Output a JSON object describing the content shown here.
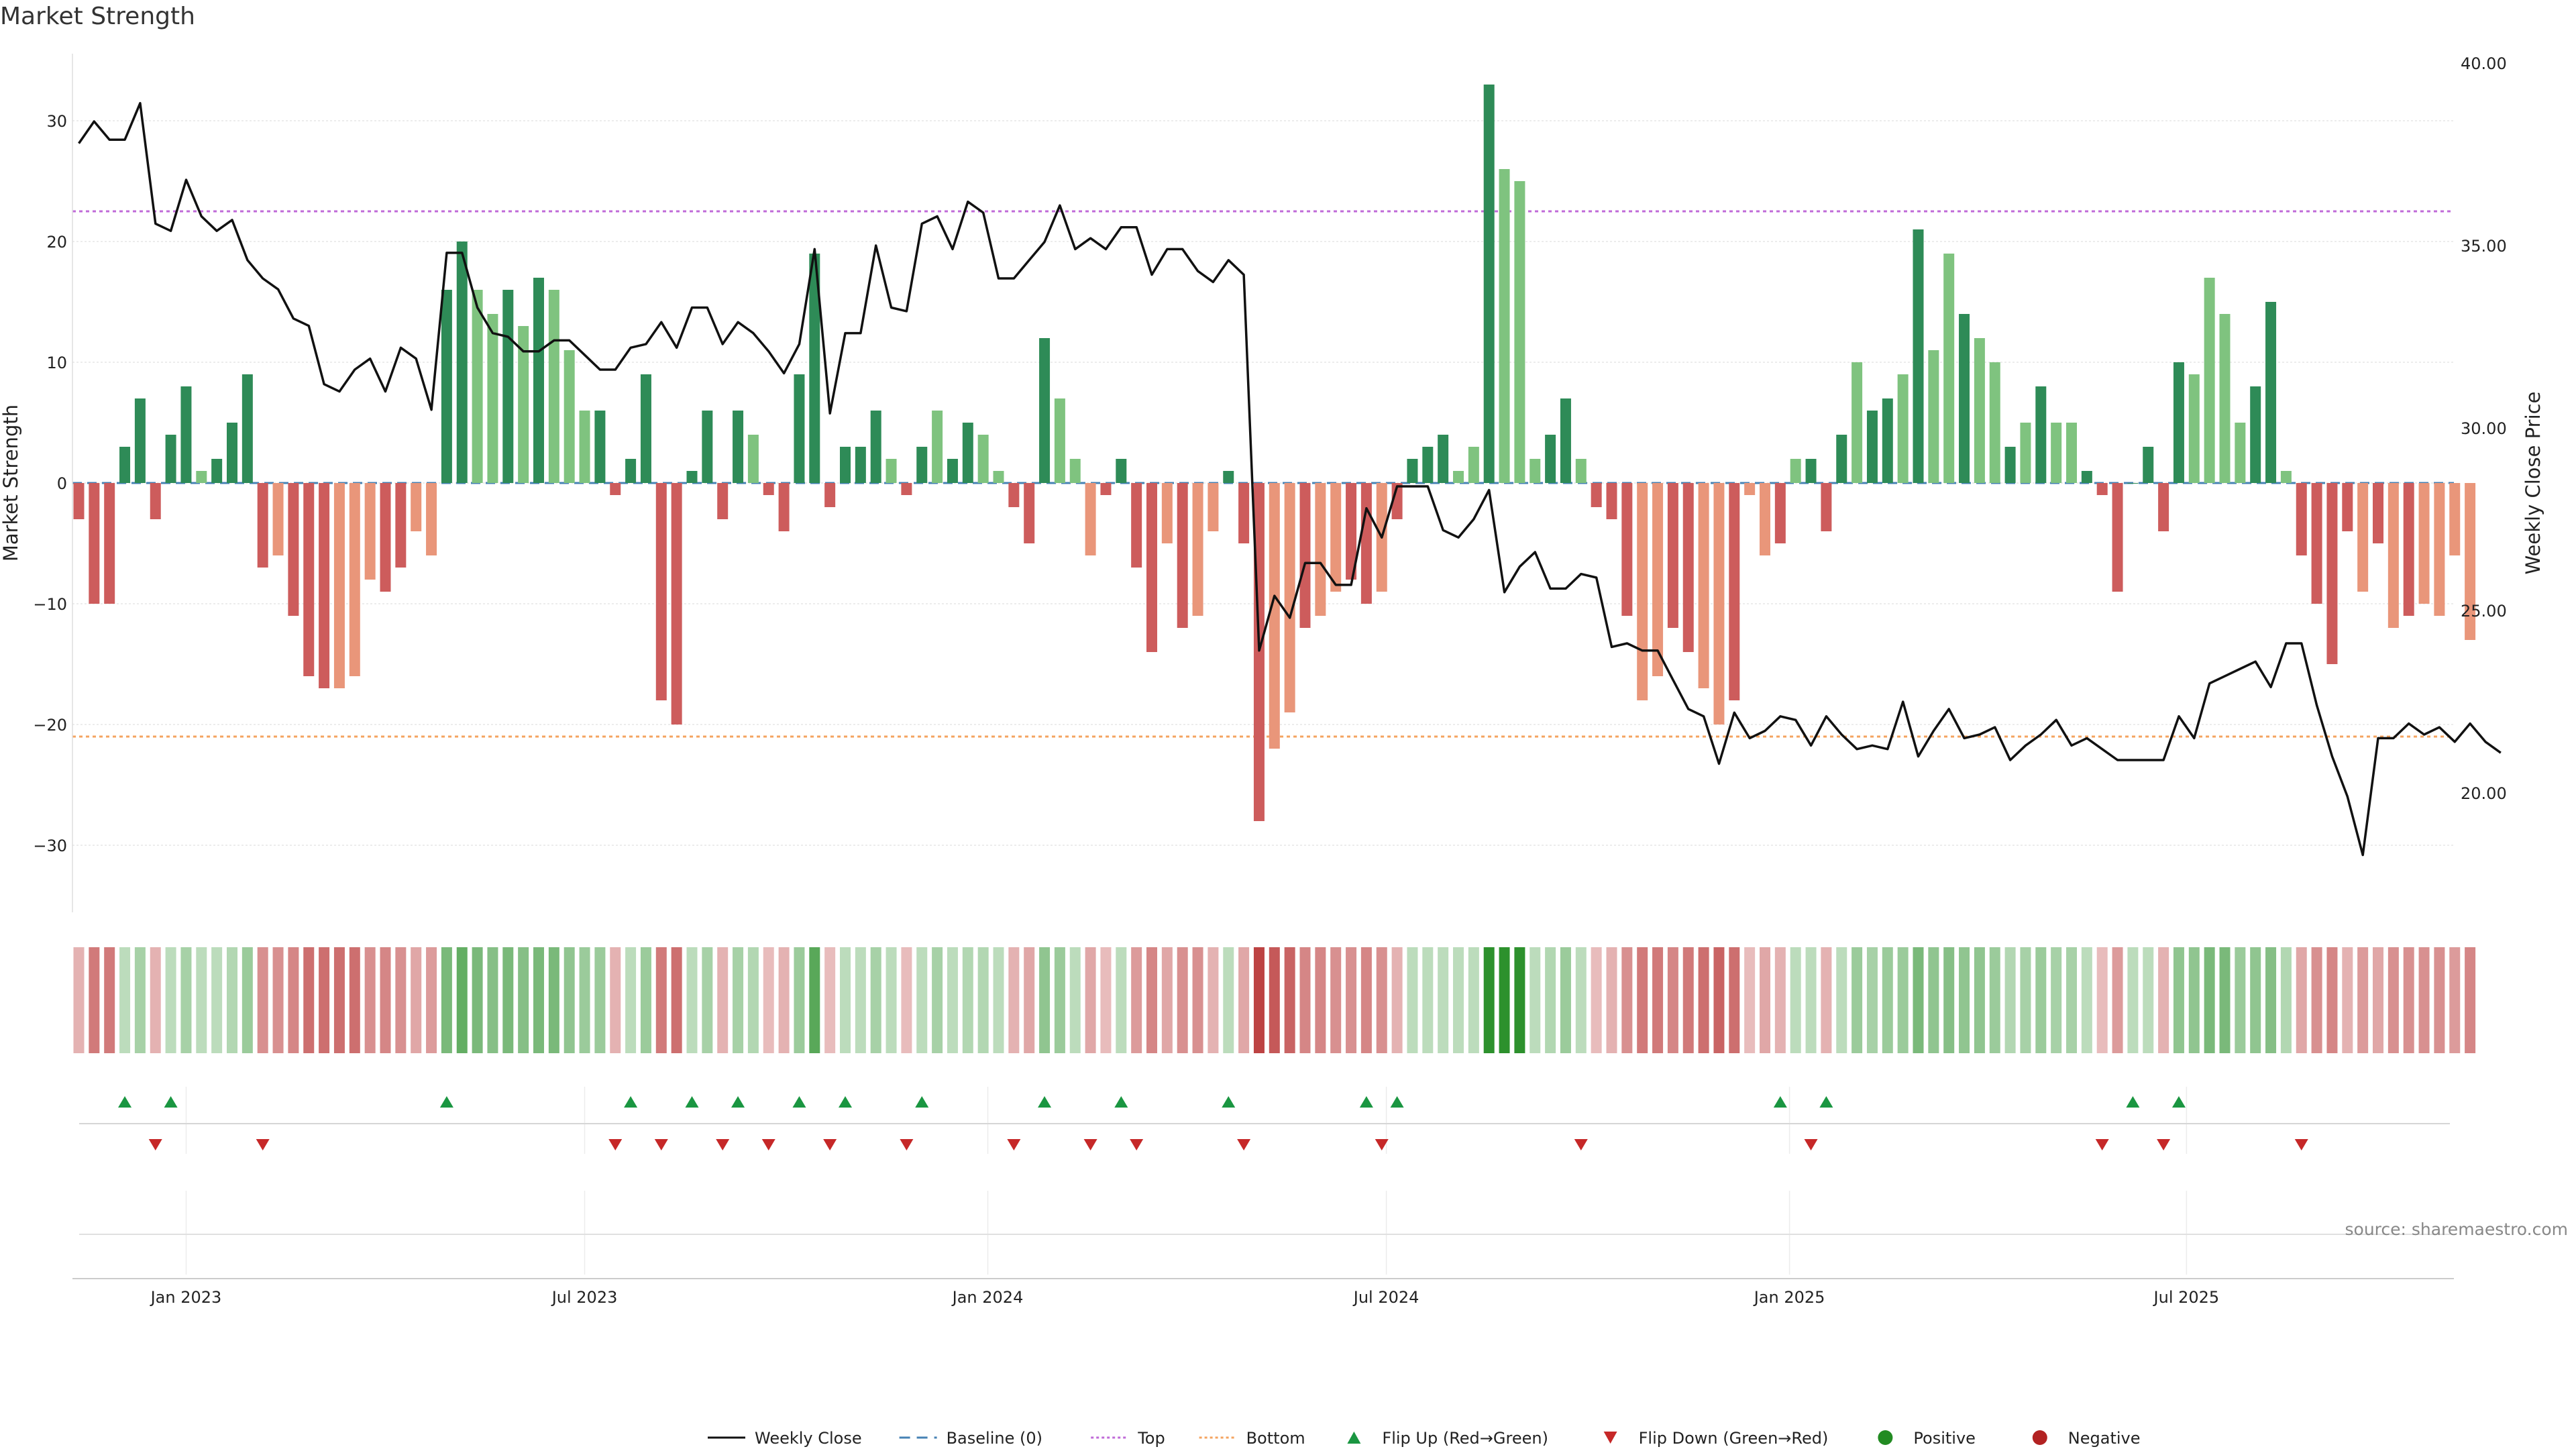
{
  "title": "Market Strength",
  "source": "source: sharemaestro.com",
  "colors": {
    "pos_strong": "#2e8b57",
    "pos_light": "#7fc37f",
    "neg_strong": "#cd5c5c",
    "neg_light": "#e9967a",
    "close": "#111111",
    "baseline": "#4682b4",
    "top": "#c06bd8",
    "bottom": "#f4a460",
    "flip_up": "#1a9641",
    "flip_down": "#c62828",
    "positive": "#228b22",
    "negative": "#b22222"
  },
  "icons": {
    "flip_up": "triangle-up-icon",
    "flip_down": "triangle-down-icon",
    "positive": "circle-icon",
    "negative": "circle-icon"
  },
  "legend": {
    "close": "Weekly Close",
    "baseline": "Baseline (0)",
    "top": "Top",
    "bottom": "Bottom",
    "flip_up": "Flip Up (Red→Green)",
    "flip_down": "Flip Down (Green→Red)",
    "positive": "Positive",
    "negative": "Negative"
  },
  "chart_data": {
    "type": "bar",
    "title": "Market Strength",
    "ylabel": "Market Strength",
    "y2label": "Weekly Close Price",
    "ylim": [
      -35,
      36
    ],
    "y2lim": [
      16.5,
      40.5
    ],
    "yticks": [
      -30,
      -20,
      -10,
      0,
      10,
      20,
      30
    ],
    "y2ticks": [
      "20.00",
      "25.00",
      "30.00",
      "35.00",
      "40.00"
    ],
    "xticks": [
      {
        "label": "Jan 2023",
        "index": 7
      },
      {
        "label": "Jul 2023",
        "index": 33
      },
      {
        "label": "Jan 2024",
        "index": 59.3
      },
      {
        "label": "Jul 2024",
        "index": 85.3
      },
      {
        "label": "Jan 2025",
        "index": 111.6
      },
      {
        "label": "Jul 2025",
        "index": 137.5
      }
    ],
    "top_line": 22.5,
    "bottom_line": -21,
    "baseline": 0,
    "strength": [
      -3,
      -10,
      -10,
      3,
      7,
      -3,
      4,
      8,
      1,
      2,
      5,
      9,
      -7,
      -6,
      -11,
      -16,
      -17,
      -17,
      -16,
      -8,
      -9,
      -7,
      -4,
      -6,
      16,
      20,
      16,
      14,
      16,
      13,
      17,
      16,
      11,
      6,
      6,
      -1,
      2,
      9,
      -18,
      -20,
      1,
      6,
      -3,
      6,
      4,
      -1,
      -4,
      9,
      19,
      -2,
      3,
      3,
      6,
      2,
      -1,
      3,
      6,
      2,
      5,
      4,
      1,
      -2,
      -5,
      12,
      7,
      2,
      -6,
      -1,
      2,
      -7,
      -14,
      -5,
      -12,
      -11,
      -4,
      1,
      -5,
      -28,
      -22,
      -19,
      -12,
      -11,
      -9,
      -8,
      -10,
      -9,
      -3,
      2,
      3,
      4,
      1,
      3,
      33,
      26,
      25,
      2,
      4,
      7,
      2,
      -2,
      -3,
      -11,
      -18,
      -16,
      -12,
      -14,
      -17,
      -20,
      -18,
      -1,
      -6,
      -5,
      2,
      2,
      -4,
      4,
      10,
      6,
      7,
      9,
      21,
      11,
      19,
      14,
      12,
      10,
      3,
      5,
      8,
      5,
      5,
      1,
      -1,
      -9,
      0,
      3,
      -4,
      10,
      9,
      17,
      14,
      5,
      8,
      15,
      1,
      -6,
      -10,
      -15,
      -4,
      -9,
      -5,
      -12,
      -11,
      -10,
      -11,
      -6,
      -13
    ],
    "strength_shade": [
      "s",
      "s",
      "s",
      "s",
      "s",
      "s",
      "s",
      "s",
      "l",
      "s",
      "s",
      "s",
      "s",
      "l",
      "s",
      "s",
      "s",
      "l",
      "l",
      "l",
      "s",
      "s",
      "l",
      "l",
      "s",
      "s",
      "l",
      "l",
      "s",
      "l",
      "s",
      "l",
      "l",
      "l",
      "s",
      "s",
      "s",
      "s",
      "s",
      "s",
      "s",
      "s",
      "s",
      "s",
      "l",
      "s",
      "s",
      "s",
      "s",
      "s",
      "s",
      "s",
      "s",
      "l",
      "s",
      "s",
      "l",
      "s",
      "s",
      "l",
      "l",
      "s",
      "s",
      "s",
      "l",
      "l",
      "l",
      "s",
      "s",
      "s",
      "s",
      "l",
      "s",
      "l",
      "l",
      "s",
      "s",
      "s",
      "l",
      "l",
      "s",
      "l",
      "l",
      "s",
      "s",
      "l",
      "s",
      "s",
      "s",
      "s",
      "l",
      "l",
      "s",
      "l",
      "l",
      "l",
      "s",
      "s",
      "l",
      "s",
      "s",
      "s",
      "l",
      "l",
      "s",
      "s",
      "l",
      "l",
      "s",
      "l",
      "l",
      "s",
      "l",
      "s",
      "s",
      "s",
      "l",
      "s",
      "s",
      "l",
      "s",
      "l",
      "l",
      "s",
      "l",
      "l",
      "s",
      "l",
      "s",
      "l",
      "l",
      "s",
      "s",
      "s",
      "s",
      "s",
      "s",
      "s",
      "l",
      "l",
      "l",
      "l",
      "s",
      "s",
      "l",
      "s",
      "s",
      "s",
      "s",
      "l",
      "s",
      "l",
      "s",
      "l",
      "l",
      "l",
      "l",
      "s"
    ],
    "close": [
      37.8,
      38.4,
      37.9,
      37.9,
      38.9,
      35.6,
      35.4,
      36.8,
      35.8,
      35.4,
      35.7,
      34.6,
      34.1,
      33.8,
      33.0,
      32.8,
      31.2,
      31.0,
      31.6,
      31.9,
      31.0,
      32.2,
      31.9,
      30.5,
      34.8,
      34.8,
      33.3,
      32.6,
      32.5,
      32.1,
      32.1,
      32.4,
      32.4,
      32.0,
      31.6,
      31.6,
      32.2,
      32.3,
      32.9,
      32.2,
      33.3,
      33.3,
      32.3,
      32.9,
      32.6,
      32.1,
      31.5,
      32.3,
      34.9,
      30.4,
      32.6,
      32.6,
      35.0,
      33.3,
      33.2,
      35.6,
      35.8,
      34.9,
      36.2,
      35.9,
      34.1,
      34.1,
      34.6,
      35.1,
      36.1,
      34.9,
      35.2,
      34.9,
      35.5,
      35.5,
      34.2,
      34.9,
      34.9,
      34.3,
      34.0,
      34.6,
      34.2,
      23.9,
      25.4,
      24.8,
      26.3,
      26.3,
      25.7,
      25.7,
      27.8,
      27.0,
      28.4,
      28.4,
      28.4,
      27.2,
      27.0,
      27.5,
      28.3,
      25.5,
      26.2,
      26.6,
      25.6,
      25.6,
      26.0,
      25.9,
      24.0,
      24.1,
      23.9,
      23.9,
      23.1,
      22.3,
      22.1,
      20.8,
      22.2,
      21.5,
      21.7,
      22.1,
      22.0,
      21.3,
      22.1,
      21.6,
      21.2,
      21.3,
      21.2,
      22.5,
      21.0,
      21.7,
      22.3,
      21.5,
      21.6,
      21.8,
      20.9,
      21.3,
      21.6,
      22.0,
      21.3,
      21.5,
      21.2,
      20.9,
      20.9,
      20.9,
      20.9,
      22.1,
      21.5,
      23.0,
      23.2,
      23.4,
      23.6,
      22.9,
      24.1,
      24.1,
      22.4,
      21.0,
      19.9,
      18.3,
      21.5,
      21.5,
      21.9,
      21.6,
      21.8,
      21.4,
      21.9,
      21.4,
      21.1
    ],
    "flip_up_idx": [
      3,
      6,
      24,
      36,
      40,
      43,
      47,
      50,
      55,
      63,
      68,
      75,
      84,
      86,
      111,
      114,
      134,
      137
    ],
    "flip_down_idx": [
      5,
      12,
      35,
      38,
      42,
      45,
      49,
      54,
      61,
      66,
      69,
      76,
      85,
      98,
      113,
      132,
      136,
      145
    ],
    "heat_alpha": [
      0.35,
      0.6,
      0.6,
      0.3,
      0.4,
      0.35,
      0.3,
      0.4,
      0.3,
      0.3,
      0.35,
      0.45,
      0.5,
      0.5,
      0.55,
      0.65,
      0.65,
      0.65,
      0.65,
      0.5,
      0.55,
      0.5,
      0.4,
      0.45,
      0.6,
      0.7,
      0.6,
      0.55,
      0.6,
      0.55,
      0.6,
      0.6,
      0.5,
      0.45,
      0.45,
      0.35,
      0.3,
      0.45,
      0.6,
      0.65,
      0.3,
      0.4,
      0.35,
      0.4,
      0.35,
      0.3,
      0.35,
      0.45,
      0.75,
      0.3,
      0.3,
      0.3,
      0.4,
      0.3,
      0.3,
      0.3,
      0.4,
      0.3,
      0.35,
      0.35,
      0.3,
      0.35,
      0.4,
      0.5,
      0.45,
      0.3,
      0.4,
      0.3,
      0.3,
      0.45,
      0.55,
      0.4,
      0.5,
      0.5,
      0.35,
      0.3,
      0.4,
      0.85,
      0.75,
      0.7,
      0.55,
      0.55,
      0.5,
      0.5,
      0.55,
      0.5,
      0.35,
      0.3,
      0.3,
      0.3,
      0.3,
      0.3,
      0.95,
      0.95,
      0.95,
      0.3,
      0.35,
      0.45,
      0.3,
      0.3,
      0.35,
      0.5,
      0.6,
      0.6,
      0.55,
      0.6,
      0.65,
      0.7,
      0.65,
      0.3,
      0.4,
      0.35,
      0.3,
      0.3,
      0.35,
      0.3,
      0.45,
      0.4,
      0.45,
      0.45,
      0.6,
      0.5,
      0.55,
      0.5,
      0.5,
      0.45,
      0.35,
      0.4,
      0.45,
      0.4,
      0.4,
      0.3,
      0.3,
      0.45,
      0.3,
      0.3,
      0.35,
      0.5,
      0.5,
      0.6,
      0.6,
      0.45,
      0.5,
      0.55,
      0.35,
      0.4,
      0.5,
      0.55,
      0.35,
      0.45,
      0.4,
      0.5,
      0.5,
      0.5,
      0.5,
      0.45,
      0.55
    ]
  }
}
